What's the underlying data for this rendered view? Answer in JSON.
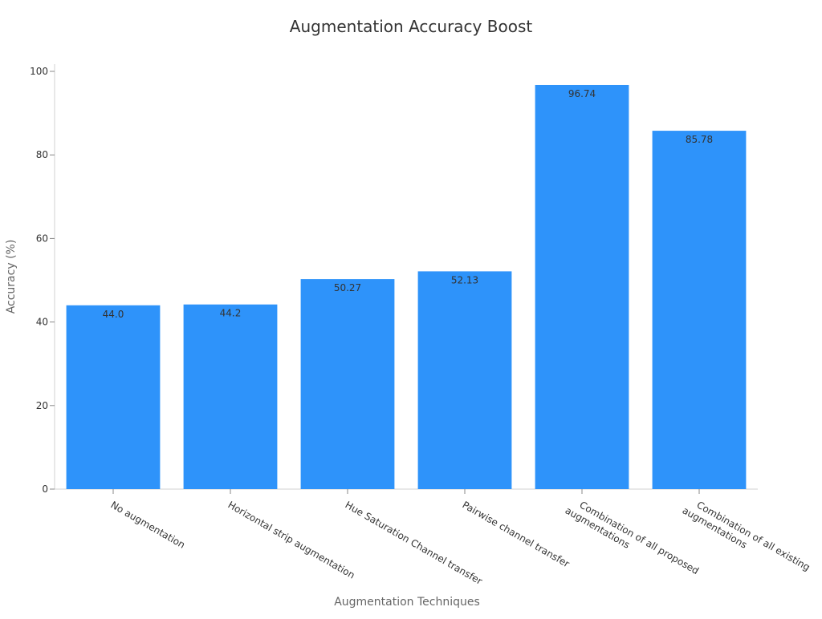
{
  "chart_data": {
    "type": "bar",
    "title": "Augmentation Accuracy Boost",
    "xlabel": "Augmentation Techniques",
    "ylabel": "Accuracy (%)",
    "categories": [
      [
        "No augmentation"
      ],
      [
        "Horizontal strip augmentation"
      ],
      [
        "Hue Saturation Channel transfer"
      ],
      [
        "Pairwise channel transfer"
      ],
      [
        "Combination of all proposed",
        "augmentations"
      ],
      [
        "Combination of all existing",
        "augmentations"
      ]
    ],
    "values": [
      44.0,
      44.2,
      50.27,
      52.13,
      96.74,
      85.78
    ],
    "value_labels": [
      "44.0",
      "44.2",
      "50.27",
      "52.13",
      "96.74",
      "85.78"
    ],
    "ylim": [
      0,
      100
    ],
    "yticks": [
      0,
      20,
      40,
      60,
      80,
      100
    ],
    "grid": false,
    "bar_color": "#2e93fa"
  }
}
